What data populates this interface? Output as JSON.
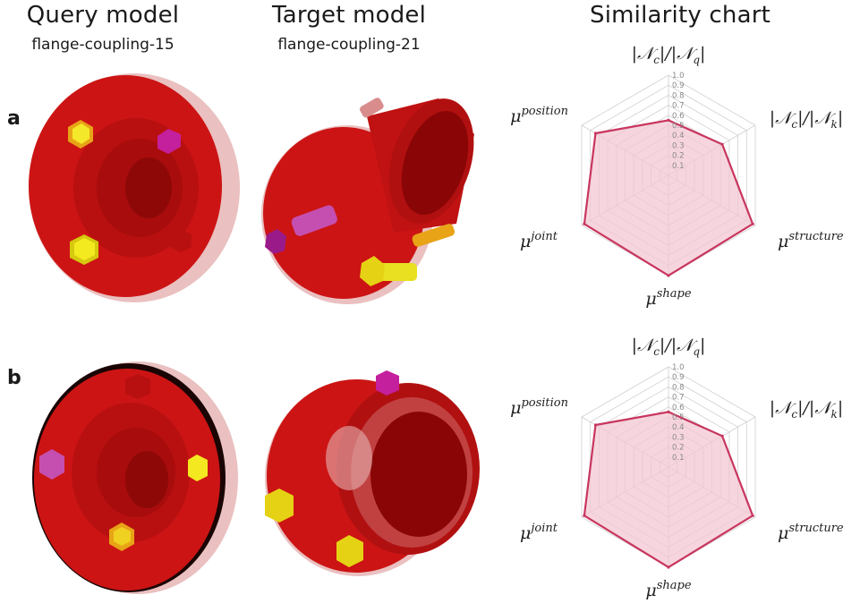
{
  "headers": {
    "query_title": "Query model",
    "query_sub": "flange-coupling-15",
    "target_title": "Target model",
    "target_sub": "flange-coupling-21",
    "chart_title": "Similarity chart"
  },
  "rows": [
    {
      "label": "a"
    },
    {
      "label": "b"
    }
  ],
  "colors": {
    "part_red": "#cc1414",
    "bolt_yellow": "#f2e410",
    "bolt_magenta": "#c41f9c",
    "bolt_orange": "#e8a317",
    "radar_line": "#c8365e",
    "radar_fill": "#f3c7d3"
  },
  "chart_data": [
    {
      "type": "radar",
      "axes": [
        "|𝒩c|/|𝒩q|",
        "|𝒩c|/|𝒩k|",
        "μstructure",
        "μshape",
        "μjoint",
        "μposition"
      ],
      "ticks": [
        "1.0",
        "0.9",
        "0.8",
        "0.7",
        "0.6",
        "0.5",
        "0.4",
        "0.3",
        "0.2",
        "0.1"
      ],
      "range": [
        0,
        1
      ],
      "values": [
        0.55,
        0.62,
        0.97,
        1.0,
        0.97,
        0.84
      ]
    },
    {
      "type": "radar",
      "axes": [
        "|𝒩c|/|𝒩q|",
        "|𝒩c|/|𝒩k|",
        "μstructure",
        "μshape",
        "μjoint",
        "μposition"
      ],
      "ticks": [
        "1.0",
        "0.9",
        "0.8",
        "0.7",
        "0.6",
        "0.5",
        "0.4",
        "0.3",
        "0.2",
        "0.1"
      ],
      "range": [
        0,
        1
      ],
      "values": [
        0.55,
        0.62,
        0.97,
        1.0,
        0.97,
        0.84
      ]
    }
  ]
}
